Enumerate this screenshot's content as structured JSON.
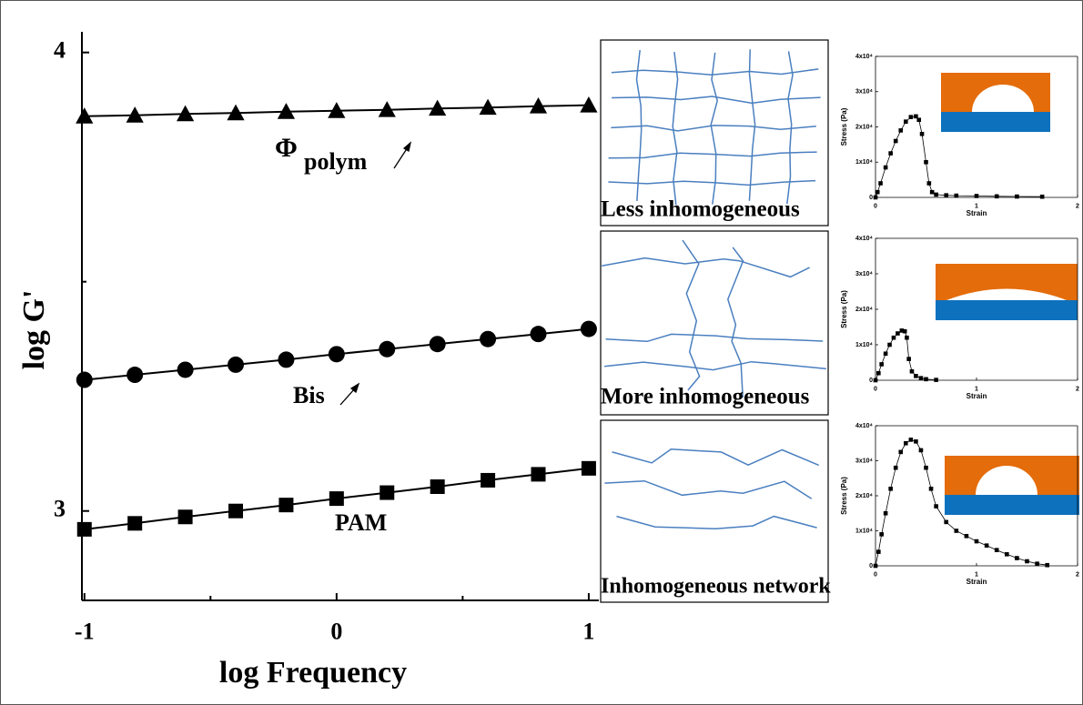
{
  "chart_data": [
    {
      "type": "line",
      "xlabel": "log Frequency",
      "ylabel": "log G'",
      "xlim": [
        -1.01,
        1.04
      ],
      "ylim": [
        2.805,
        4.045
      ],
      "xticks": [
        -1,
        0,
        1
      ],
      "yticks": [
        3,
        4
      ],
      "xminor": [
        -0.5,
        0.5
      ],
      "yminor": [
        3.5
      ],
      "x": [
        -1,
        -0.8,
        -0.6,
        -0.4,
        -0.2,
        0,
        0.2,
        0.4,
        0.6,
        0.8,
        1
      ],
      "series": [
        {
          "marker": "triangle",
          "color": "#000000",
          "values": [
            3.861,
            3.863,
            3.866,
            3.868,
            3.871,
            3.873,
            3.875,
            3.878,
            3.88,
            3.883,
            3.885
          ]
        },
        {
          "marker": "circle",
          "color": "#000000",
          "values": [
            3.286,
            3.297,
            3.308,
            3.319,
            3.33,
            3.342,
            3.353,
            3.364,
            3.375,
            3.386,
            3.397
          ]
        },
        {
          "marker": "square",
          "color": "#000000",
          "values": [
            2.96,
            2.973,
            2.987,
            3.0,
            3.013,
            3.027,
            3.04,
            3.053,
            3.067,
            3.08,
            3.093
          ]
        }
      ],
      "annotations": [
        "Φ",
        "polym",
        "Bis",
        "PAM"
      ]
    },
    {
      "type": "line",
      "xlabel": "Strain",
      "ylabel": "Stress (Pa)",
      "xlim": [
        0,
        2
      ],
      "ylim": [
        0,
        40000
      ],
      "xticks": [
        0,
        1,
        2
      ],
      "yticks": [
        0,
        {
          "value": 10000,
          "label": "1x10⁴"
        },
        {
          "value": 20000,
          "label": "2x10⁴"
        },
        {
          "value": 30000,
          "label": "3x10⁴"
        },
        {
          "value": 40000,
          "label": "4x10⁴"
        }
      ],
      "x": [
        0,
        0.02,
        0.05,
        0.1,
        0.15,
        0.2,
        0.25,
        0.3,
        0.35,
        0.4,
        0.43,
        0.46,
        0.5,
        0.53,
        0.56,
        0.6,
        0.7,
        0.8,
        1.0,
        1.2,
        1.4,
        1.65
      ],
      "series": [
        {
          "marker": "square",
          "color": "#000000",
          "values": [
            0,
            1500,
            4000,
            8500,
            12500,
            16000,
            19000,
            21500,
            22800,
            23000,
            22000,
            18000,
            10000,
            4000,
            1500,
            800,
            600,
            500,
            400,
            300,
            250,
            200
          ]
        }
      ]
    },
    {
      "type": "line",
      "xlabel": "Strain",
      "ylabel": "Stress (Pa)",
      "xlim": [
        0,
        2
      ],
      "ylim": [
        0,
        40000
      ],
      "xticks": [
        0,
        1,
        2
      ],
      "yticks": [
        0,
        {
          "value": 10000,
          "label": "1x10⁴"
        },
        {
          "value": 20000,
          "label": "2x10⁴"
        },
        {
          "value": 30000,
          "label": "3x10⁴"
        },
        {
          "value": 40000,
          "label": "4x10⁴"
        }
      ],
      "x": [
        0,
        0.03,
        0.06,
        0.1,
        0.14,
        0.18,
        0.22,
        0.26,
        0.29,
        0.31,
        0.33,
        0.36,
        0.4,
        0.45,
        0.5,
        0.6
      ],
      "series": [
        {
          "marker": "square",
          "color": "#000000",
          "values": [
            0,
            2000,
            4500,
            7500,
            10000,
            12000,
            13200,
            14000,
            13800,
            12000,
            6000,
            2500,
            1200,
            600,
            300,
            100
          ]
        }
      ]
    },
    {
      "type": "line",
      "xlabel": "Strain",
      "ylabel": "Stress (Pa)",
      "xlim": [
        0,
        2
      ],
      "ylim": [
        0,
        40000
      ],
      "xticks": [
        0,
        1,
        2
      ],
      "yticks": [
        0,
        {
          "value": 10000,
          "label": "1x10⁴"
        },
        {
          "value": 20000,
          "label": "2x10⁴"
        },
        {
          "value": 30000,
          "label": "3x10⁴"
        },
        {
          "value": 40000,
          "label": "4x10⁴"
        }
      ],
      "x": [
        0,
        0.03,
        0.06,
        0.1,
        0.15,
        0.2,
        0.25,
        0.3,
        0.35,
        0.4,
        0.45,
        0.5,
        0.55,
        0.6,
        0.7,
        0.8,
        0.9,
        1.0,
        1.1,
        1.2,
        1.3,
        1.4,
        1.5,
        1.6,
        1.7
      ],
      "series": [
        {
          "marker": "square",
          "color": "#000000",
          "values": [
            0,
            4000,
            9000,
            15000,
            22000,
            28000,
            32500,
            35000,
            36000,
            35500,
            33000,
            28000,
            22000,
            17000,
            12500,
            10000,
            8500,
            7000,
            5800,
            4500,
            3300,
            2200,
            1300,
            600,
            200
          ]
        }
      ]
    }
  ],
  "panels": [
    "Less inhomogeneous",
    "More inhomogeneous",
    "Inhomogeneous network"
  ]
}
